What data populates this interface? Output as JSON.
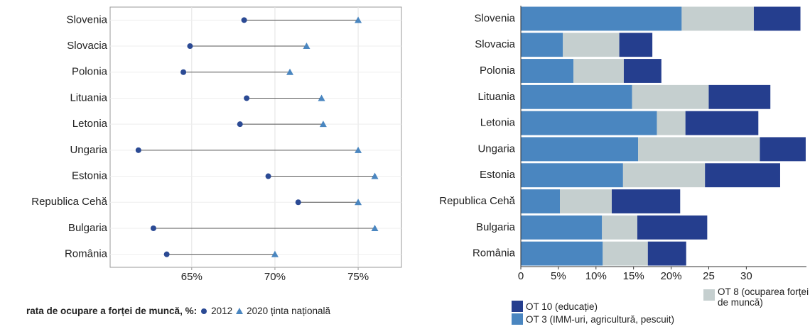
{
  "chart_data": [
    {
      "type": "dumbbell",
      "legend_title": "rata de ocupare a forței de muncă, %:",
      "categories": [
        "Slovenia",
        "Slovacia",
        "Polonia",
        "Lituania",
        "Letonia",
        "Ungaria",
        "Estonia",
        "Republica Cehă",
        "Bulgaria",
        "România"
      ],
      "series": [
        {
          "name": "2012",
          "color": "#2b4a94",
          "marker": "circle",
          "values": [
            68.15,
            64.9,
            64.5,
            68.3,
            67.9,
            61.8,
            69.6,
            71.4,
            62.7,
            63.5
          ]
        },
        {
          "name": "2020 ținta națională",
          "color": "#4a86c0",
          "marker": "triangle",
          "values": [
            75,
            71.9,
            70.9,
            72.8,
            72.9,
            75,
            76,
            75,
            76,
            70
          ]
        }
      ],
      "xlim": [
        60.1,
        77.6
      ],
      "xticks": [
        {
          "value": 65,
          "label": "65%"
        },
        {
          "value": 70,
          "label": "70%"
        },
        {
          "value": 75,
          "label": "75%"
        }
      ],
      "grid": true
    },
    {
      "type": "stacked_bar",
      "orientation": "horizontal",
      "categories": [
        "Slovenia",
        "Slovacia",
        "Polonia",
        "Lituania",
        "Letonia",
        "Ungaria",
        "Estonia",
        "Republica Cehă",
        "Bulgaria",
        "România"
      ],
      "series": [
        {
          "name": "OT 3 (IMM-uri, agricultură, pescuit)",
          "color": "#4a86c0",
          "values": [
            21.4,
            5.6,
            7.0,
            14.8,
            18.1,
            15.6,
            13.6,
            5.2,
            10.8,
            10.9
          ]
        },
        {
          "name": "OT 8 (ocuparea forței de muncă)",
          "color": "#c5cfcf",
          "values": [
            9.6,
            7.5,
            6.7,
            10.2,
            3.8,
            16.2,
            10.9,
            6.9,
            4.7,
            6.0
          ]
        },
        {
          "name": "OT 10 (educație)",
          "color": "#253e8e",
          "values": [
            6.2,
            4.4,
            5.0,
            8.2,
            9.7,
            6.1,
            10.0,
            9.1,
            9.3,
            5.1
          ]
        }
      ],
      "xlim": [
        0,
        38
      ],
      "xticks": [
        0,
        {
          "value": 5,
          "label": "5%"
        },
        {
          "value": 10,
          "label": "10%"
        },
        {
          "value": 15,
          "label": "15%"
        },
        {
          "value": 20,
          "label": "20%"
        },
        25,
        30
      ]
    }
  ]
}
